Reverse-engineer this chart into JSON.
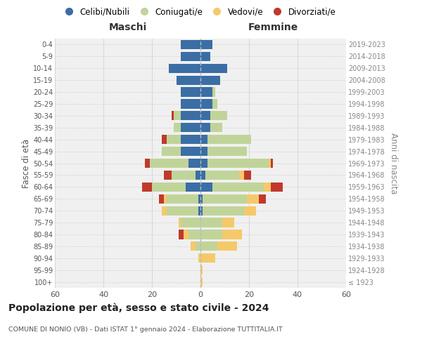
{
  "age_groups": [
    "100+",
    "95-99",
    "90-94",
    "85-89",
    "80-84",
    "75-79",
    "70-74",
    "65-69",
    "60-64",
    "55-59",
    "50-54",
    "45-49",
    "40-44",
    "35-39",
    "30-34",
    "25-29",
    "20-24",
    "15-19",
    "10-14",
    "5-9",
    "0-4"
  ],
  "birth_years": [
    "≤ 1923",
    "1924-1928",
    "1929-1933",
    "1934-1938",
    "1939-1943",
    "1944-1948",
    "1949-1953",
    "1954-1958",
    "1959-1963",
    "1964-1968",
    "1969-1973",
    "1974-1978",
    "1979-1983",
    "1984-1988",
    "1989-1993",
    "1994-1998",
    "1999-2003",
    "2004-2008",
    "2009-2013",
    "2014-2018",
    "2019-2023"
  ],
  "males": {
    "celibi": [
      0,
      0,
      0,
      0,
      0,
      0,
      1,
      1,
      6,
      2,
      5,
      8,
      8,
      8,
      8,
      8,
      8,
      10,
      13,
      8,
      8
    ],
    "coniugati": [
      0,
      0,
      0,
      2,
      5,
      8,
      13,
      13,
      14,
      10,
      16,
      8,
      6,
      3,
      3,
      0,
      0,
      0,
      0,
      0,
      0
    ],
    "vedovi": [
      0,
      0,
      1,
      2,
      2,
      1,
      2,
      1,
      0,
      0,
      0,
      0,
      0,
      0,
      0,
      0,
      0,
      0,
      0,
      0,
      0
    ],
    "divorziati": [
      0,
      0,
      0,
      0,
      2,
      0,
      0,
      2,
      4,
      3,
      2,
      0,
      2,
      0,
      1,
      0,
      0,
      0,
      0,
      0,
      0
    ]
  },
  "females": {
    "nubili": [
      0,
      0,
      0,
      0,
      0,
      0,
      1,
      1,
      5,
      2,
      3,
      3,
      3,
      4,
      4,
      5,
      5,
      8,
      11,
      4,
      5
    ],
    "coniugate": [
      0,
      0,
      0,
      7,
      9,
      9,
      17,
      18,
      21,
      14,
      25,
      16,
      18,
      5,
      7,
      2,
      1,
      0,
      0,
      0,
      0
    ],
    "vedove": [
      1,
      1,
      6,
      8,
      8,
      5,
      5,
      5,
      3,
      2,
      1,
      0,
      0,
      0,
      0,
      0,
      0,
      0,
      0,
      0,
      0
    ],
    "divorziate": [
      0,
      0,
      0,
      0,
      0,
      0,
      0,
      3,
      5,
      3,
      1,
      0,
      0,
      0,
      0,
      0,
      0,
      0,
      0,
      0,
      0
    ]
  },
  "colors": {
    "celibi": "#3a6ea5",
    "coniugati": "#c0d49a",
    "vedovi": "#f5c96a",
    "divorziati": "#c0392b"
  },
  "xlim": 60,
  "title": "Popolazione per età, sesso e stato civile - 2024",
  "subtitle": "COMUNE DI NONIO (VB) - Dati ISTAT 1° gennaio 2024 - Elaborazione TUTTITALIA.IT",
  "ylabel_left": "Fasce di età",
  "ylabel_right": "Anni di nascita",
  "legend_labels": [
    "Celibi/Nubili",
    "Coniugati/e",
    "Vedovi/e",
    "Divorziati/e"
  ],
  "maschi_label": "Maschi",
  "femmine_label": "Femmine",
  "bg_color": "#f0f0f0"
}
